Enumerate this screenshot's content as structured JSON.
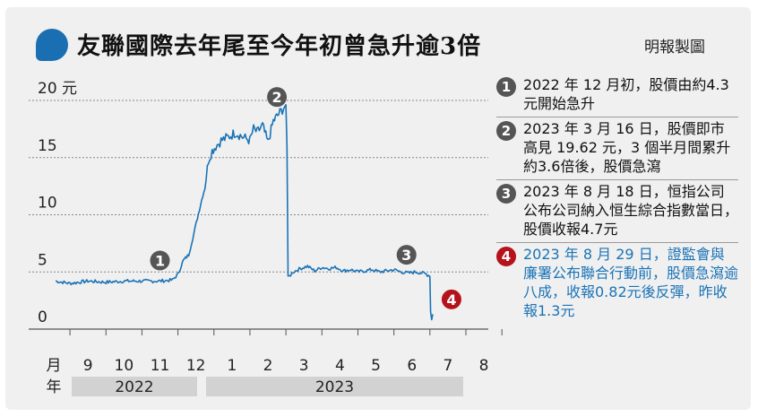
{
  "header": {
    "title": "友聯國際去年尾至今年初曾急升逾3倍",
    "credit": "明報製圖"
  },
  "chart_data": {
    "type": "line",
    "title": "友聯國際去年尾至今年初曾急升逾3倍",
    "ylim": [
      0,
      20
    ],
    "yticks": [
      0,
      5,
      10,
      15,
      20
    ],
    "ytick_labels": [
      "0",
      "5",
      "10",
      "15",
      "20 元"
    ],
    "x_month_labels": [
      "9",
      "10",
      "11",
      "12",
      "1",
      "2",
      "3",
      "4",
      "5",
      "6",
      "7",
      "8"
    ],
    "x_axis_caption": [
      "月",
      "年"
    ],
    "years": [
      "2022",
      "2023"
    ],
    "x_start": 8.6,
    "x_end": 20.0,
    "series": [
      {
        "color": "#1a73b6",
        "x": [
          8.6,
          9.0,
          9.5,
          10.0,
          10.5,
          11.0,
          11.5,
          11.85,
          12.0,
          12.15,
          12.3,
          12.45,
          12.6,
          12.75,
          12.85,
          12.95,
          13.05,
          13.2,
          13.4,
          13.6,
          13.8,
          14.0,
          14.1,
          14.2,
          14.35,
          14.5,
          14.65,
          14.8,
          14.9,
          15.0,
          15.03,
          15.06,
          15.2,
          15.4,
          15.6,
          15.8,
          16.0,
          16.2,
          16.4,
          16.6,
          16.8,
          17.0,
          17.2,
          17.4,
          17.6,
          17.8,
          18.0,
          18.2,
          18.4,
          18.6,
          18.8,
          18.9,
          18.96,
          19.0,
          19.02,
          19.05,
          19.08
        ],
        "y": [
          4.2,
          4.0,
          4.2,
          4.1,
          4.2,
          4.2,
          4.2,
          4.3,
          4.8,
          6.0,
          6.5,
          8.5,
          10.5,
          12.5,
          14.8,
          15.6,
          16.0,
          16.5,
          16.8,
          17.2,
          16.8,
          16.5,
          17.5,
          17.2,
          17.8,
          16.3,
          18.2,
          18.8,
          19.2,
          19.62,
          16.0,
          4.5,
          5.0,
          5.3,
          5.5,
          5.1,
          5.4,
          5.3,
          5.4,
          5.1,
          5.2,
          5.0,
          5.1,
          5.2,
          5.0,
          5.1,
          5.2,
          5.0,
          4.9,
          5.0,
          4.9,
          4.8,
          4.7,
          4.6,
          1.5,
          0.82,
          1.3
        ]
      }
    ],
    "annotations": [
      {
        "label": "1",
        "x": 11.5,
        "y": 6.0
      },
      {
        "label": "2",
        "x": 14.75,
        "y": 20.3
      },
      {
        "label": "3",
        "x": 18.35,
        "y": 6.5
      },
      {
        "label": "4",
        "x": 19.6,
        "y": 2.6
      }
    ]
  },
  "notes": [
    {
      "num": "1",
      "text": "2022 年 12 月初，股價由約4.3元開始急升"
    },
    {
      "num": "2",
      "text": "2023 年 3 月 16 日，股價即市高見 19.62 元，3 個半月間累升約3.6倍後，股價急瀉"
    },
    {
      "num": "3",
      "text": "2023 年 8 月 18 日，恒指公司公布公司納入恒生綜合指數當日，股價收報4.7元"
    },
    {
      "num": "4",
      "text": "2023 年 8 月 29 日，證監會與廉署公布聯合行動前，股價急瀉逾八成，收報0.82元後反彈，昨收報1.3元"
    }
  ],
  "colors": {
    "line": "#1a73b6",
    "highlight": "#1a73b6",
    "marker": "#555555",
    "marker_alert": "#b5121b",
    "year_band": "#d2d2d2"
  }
}
